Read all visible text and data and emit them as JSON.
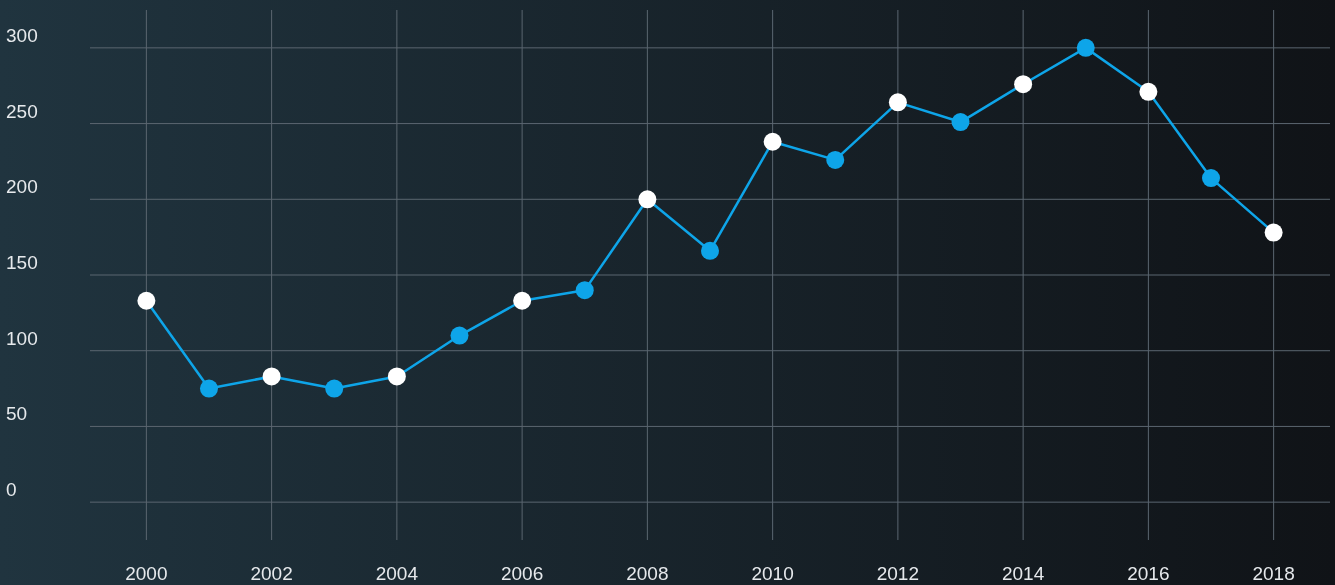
{
  "chart_data": {
    "type": "line",
    "x": [
      2000,
      2001,
      2002,
      2003,
      2004,
      2005,
      2006,
      2007,
      2008,
      2009,
      2010,
      2011,
      2012,
      2013,
      2014,
      2015,
      2016,
      2017,
      2018
    ],
    "series": [
      {
        "color": "#0ea5e9",
        "values": [
          133,
          75,
          83,
          75,
          83,
          110,
          133,
          140,
          200,
          166,
          238,
          226,
          264,
          251,
          276,
          300,
          271,
          214,
          178
        ],
        "colors": [
          "#ffffff",
          "#0ea5e9",
          "#ffffff",
          "#0ea5e9",
          "#ffffff",
          "#0ea5e9",
          "#ffffff",
          "#0ea5e9",
          "#ffffff",
          "#0ea5e9",
          "#ffffff",
          "#0ea5e9",
          "#ffffff",
          "#0ea5e9",
          "#ffffff",
          "#0ea5e9",
          "#ffffff",
          "#0ea5e9",
          "#ffffff"
        ]
      }
    ],
    "xlim": [
      1999.1,
      2018.9
    ],
    "xticks": [
      2000,
      2002,
      2004,
      2006,
      2008,
      2010,
      2012,
      2014,
      2016,
      2018
    ],
    "ylim": [
      -25,
      325
    ],
    "yticks": [
      0,
      50,
      100,
      150,
      200,
      250,
      300
    ],
    "grid": true,
    "marker": "circle",
    "line_style": "solid"
  }
}
